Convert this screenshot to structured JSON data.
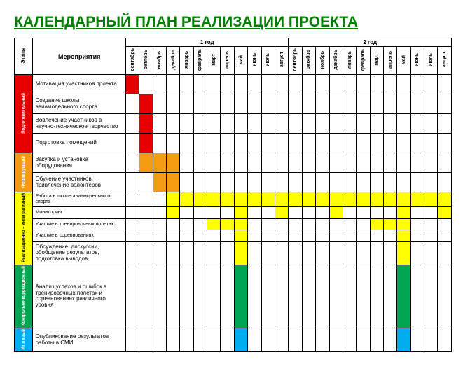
{
  "title": "КАЛЕНДАРНЫЙ ПЛАН РЕАЛИЗАЦИИ ПРОЕКТА",
  "colors": {
    "title": "#008000",
    "border": "#000000",
    "bg": "#ffffff"
  },
  "headers": {
    "stage": "Этапы",
    "activity": "Мероприятия",
    "periods": [
      "1 год",
      "2 год"
    ],
    "months": [
      "сентябрь",
      "октябрь",
      "ноябрь",
      "декабрь",
      "январь",
      "февраль",
      "март",
      "апрель",
      "май",
      "июнь",
      "июль",
      "август",
      "сентябрь",
      "октябрь",
      "ноябрь",
      "декабрь",
      "январь",
      "февраль",
      "март",
      "апрель",
      "май",
      "июнь",
      "июль",
      "август"
    ]
  },
  "stages": [
    {
      "label": "Подготовительный",
      "color": "#e60000",
      "rows": [
        {
          "activity": "Мотивация участников проекта",
          "bars": [
            {
              "start": 0,
              "end": 0,
              "color": "#e60000"
            }
          ]
        },
        {
          "activity": "Создание школы авиамодельного спорта",
          "bars": [
            {
              "start": 1,
              "end": 1,
              "color": "#e60000"
            }
          ]
        },
        {
          "activity": "Вовлечение участников в научно-техническое творчество",
          "bars": [
            {
              "start": 1,
              "end": 1,
              "color": "#e60000"
            }
          ]
        },
        {
          "activity": "Подготовка помещений",
          "bars": [
            {
              "start": 1,
              "end": 1,
              "color": "#e60000"
            }
          ]
        }
      ]
    },
    {
      "label": "Формирующий",
      "color": "#f39c12",
      "rows": [
        {
          "activity": "Закупка и установка оборудования",
          "bars": [
            {
              "start": 1,
              "end": 3,
              "color": "#f39c12"
            }
          ]
        },
        {
          "activity": "Обучение участников, привлечение волонтеров",
          "bars": [
            {
              "start": 2,
              "end": 3,
              "color": "#f39c12"
            }
          ]
        }
      ]
    },
    {
      "label": "Реализационно – интегративный",
      "color": "#ffff00",
      "textcolor": "#000",
      "rows": [
        {
          "activity": "Работа в школе авиамодельного спорта",
          "small": true,
          "bars": [
            {
              "start": 3,
              "end": 23,
              "color": "#ffff00"
            }
          ]
        },
        {
          "activity": "Мониторинг",
          "small": true,
          "bars": [
            {
              "start": 3,
              "end": 3,
              "color": "#ffff00"
            },
            {
              "start": 8,
              "end": 8,
              "color": "#ffff00"
            },
            {
              "start": 11,
              "end": 11,
              "color": "#ffff00"
            },
            {
              "start": 15,
              "end": 15,
              "color": "#ffff00"
            },
            {
              "start": 20,
              "end": 20,
              "color": "#ffff00"
            },
            {
              "start": 23,
              "end": 23,
              "color": "#ffff00"
            }
          ]
        },
        {
          "activity": "Участие в тренировочных полетах",
          "small": true,
          "bars": [
            {
              "start": 6,
              "end": 8,
              "color": "#ffff00"
            },
            {
              "start": 18,
              "end": 20,
              "color": "#ffff00"
            }
          ]
        },
        {
          "activity": "Участие в соревнованиях",
          "small": true,
          "bars": [
            {
              "start": 8,
              "end": 8,
              "color": "#ffff00"
            },
            {
              "start": 20,
              "end": 20,
              "color": "#ffff00"
            }
          ]
        },
        {
          "activity": "Обсуждение, дискуссии, обобщение результатов, подготовка выводов",
          "bars": [
            {
              "start": 8,
              "end": 8,
              "color": "#ffff00"
            },
            {
              "start": 20,
              "end": 20,
              "color": "#ffff00"
            }
          ]
        }
      ]
    },
    {
      "label": "Контрольно-коррекционный",
      "color": "#00a651",
      "rows": [
        {
          "activity": "Анализ успехов и ошибок в тренировочных полетах и соревнованиях различного уровня",
          "tall": true,
          "bars": [
            {
              "start": 8,
              "end": 8,
              "color": "#00a651"
            },
            {
              "start": 20,
              "end": 20,
              "color": "#00a651"
            }
          ]
        }
      ]
    },
    {
      "label": "Итоговый",
      "color": "#00aeef",
      "rows": [
        {
          "activity": "Опубликование результатов работы в СМИ",
          "bars": [
            {
              "start": 8,
              "end": 8,
              "color": "#00aeef"
            },
            {
              "start": 20,
              "end": 20,
              "color": "#00aeef"
            }
          ]
        }
      ]
    }
  ]
}
